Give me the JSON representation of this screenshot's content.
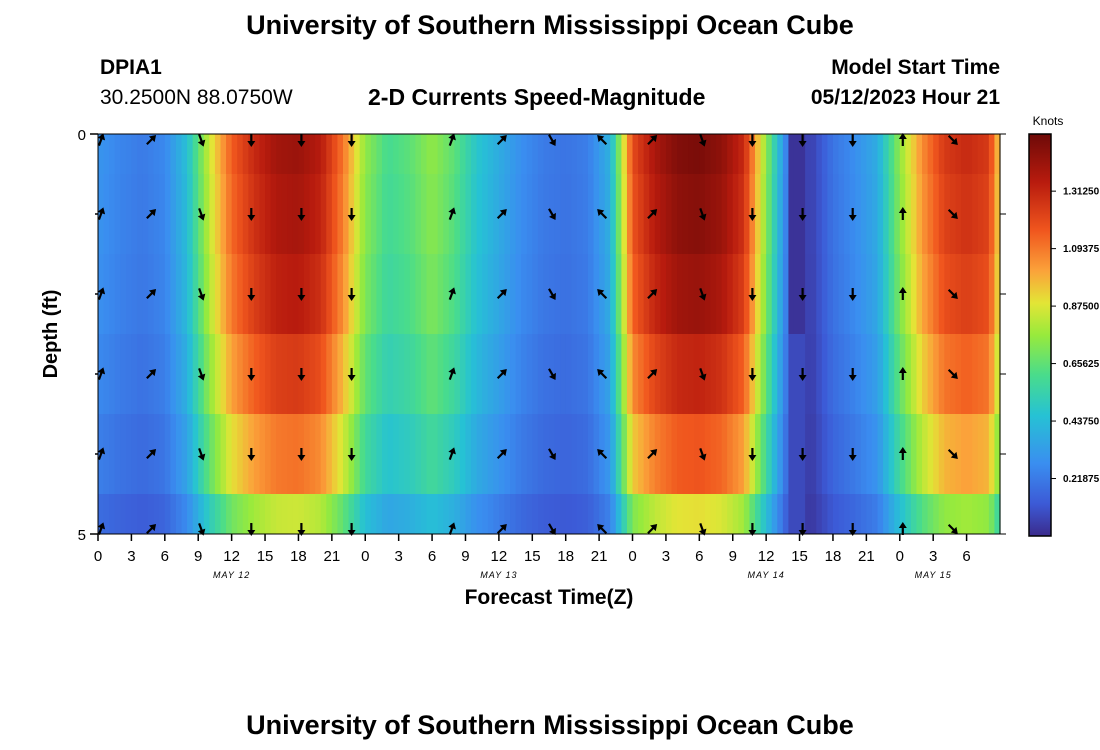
{
  "page": {
    "title_top": "University of Southern Mississippi Ocean Cube",
    "title_bottom": "University of Southern Mississippi Ocean Cube"
  },
  "station": {
    "id": "DPIA1",
    "coords": "30.2500N  88.0750W"
  },
  "model": {
    "start_label": "Model Start Time",
    "start_value": "05/12/2023 Hour 21"
  },
  "chart_data": {
    "type": "heatmap",
    "title": "2-D Currents Speed-Magnitude",
    "xlabel": "Forecast Time(Z)",
    "ylabel": "Depth (ft)",
    "colorbar_label": "Knots",
    "colorbar_ticks": [
      "0.21875",
      "0.43750",
      "0.65625",
      "0.87500",
      "1.09375",
      "1.31250"
    ],
    "colorbar_range": [
      0.0,
      1.53
    ],
    "ylim": [
      0,
      5
    ],
    "y_ticks": [
      "0",
      "5"
    ],
    "xlim_hours": [
      0,
      81
    ],
    "x_tick_labels": [
      "0",
      "3",
      "6",
      "9",
      "12",
      "15",
      "18",
      "21",
      "0",
      "3",
      "6",
      "9",
      "12",
      "15",
      "18",
      "21",
      "0",
      "3",
      "6",
      "9",
      "12",
      "15",
      "18",
      "21",
      "0",
      "3",
      "6"
    ],
    "date_labels": [
      {
        "label": "MAY 12",
        "hour": 12
      },
      {
        "label": "MAY 13",
        "hour": 36
      },
      {
        "label": "MAY 14",
        "hour": 60
      },
      {
        "label": "MAY 15",
        "hour": 75
      }
    ],
    "depth_levels_ft": [
      0,
      1,
      2,
      3,
      4,
      5
    ],
    "speed_profile": {
      "hours": [
        0,
        2,
        4,
        6,
        8,
        10,
        12,
        14,
        16,
        18,
        20,
        22,
        24,
        26,
        28,
        30,
        32,
        34,
        36,
        38,
        40,
        42,
        44,
        46,
        48,
        50,
        52,
        54,
        56,
        58,
        60,
        62,
        64,
        66,
        68,
        70,
        72,
        74,
        76,
        78,
        80,
        81
      ],
      "knots": [
        0.3,
        0.25,
        0.22,
        0.26,
        0.45,
        0.85,
        1.15,
        1.3,
        1.4,
        1.42,
        1.35,
        1.1,
        0.75,
        0.6,
        0.65,
        0.75,
        0.65,
        0.48,
        0.38,
        0.28,
        0.22,
        0.2,
        0.23,
        0.4,
        1.2,
        1.38,
        1.48,
        1.5,
        1.45,
        1.3,
        0.75,
        0.18,
        0.05,
        0.2,
        0.28,
        0.38,
        0.75,
        1.05,
        1.25,
        1.3,
        1.25,
        0.9
      ]
    },
    "depth_factor": [
      1.0,
      0.98,
      0.95,
      0.88,
      0.78,
      0.6
    ],
    "arrows": {
      "hours": [
        0,
        4.5,
        9,
        13.5,
        18,
        22.5,
        27,
        31.5,
        36,
        40.5,
        45,
        49.5,
        54,
        58.5,
        63,
        67.5,
        72,
        76.5
      ],
      "depths_ft": [
        0,
        1,
        2,
        3,
        4,
        5
      ],
      "direction_deg_per_time": [
        20,
        45,
        160,
        180,
        180,
        180,
        null,
        20,
        45,
        150,
        315,
        45,
        160,
        180,
        180,
        180,
        0,
        135
      ]
    }
  }
}
